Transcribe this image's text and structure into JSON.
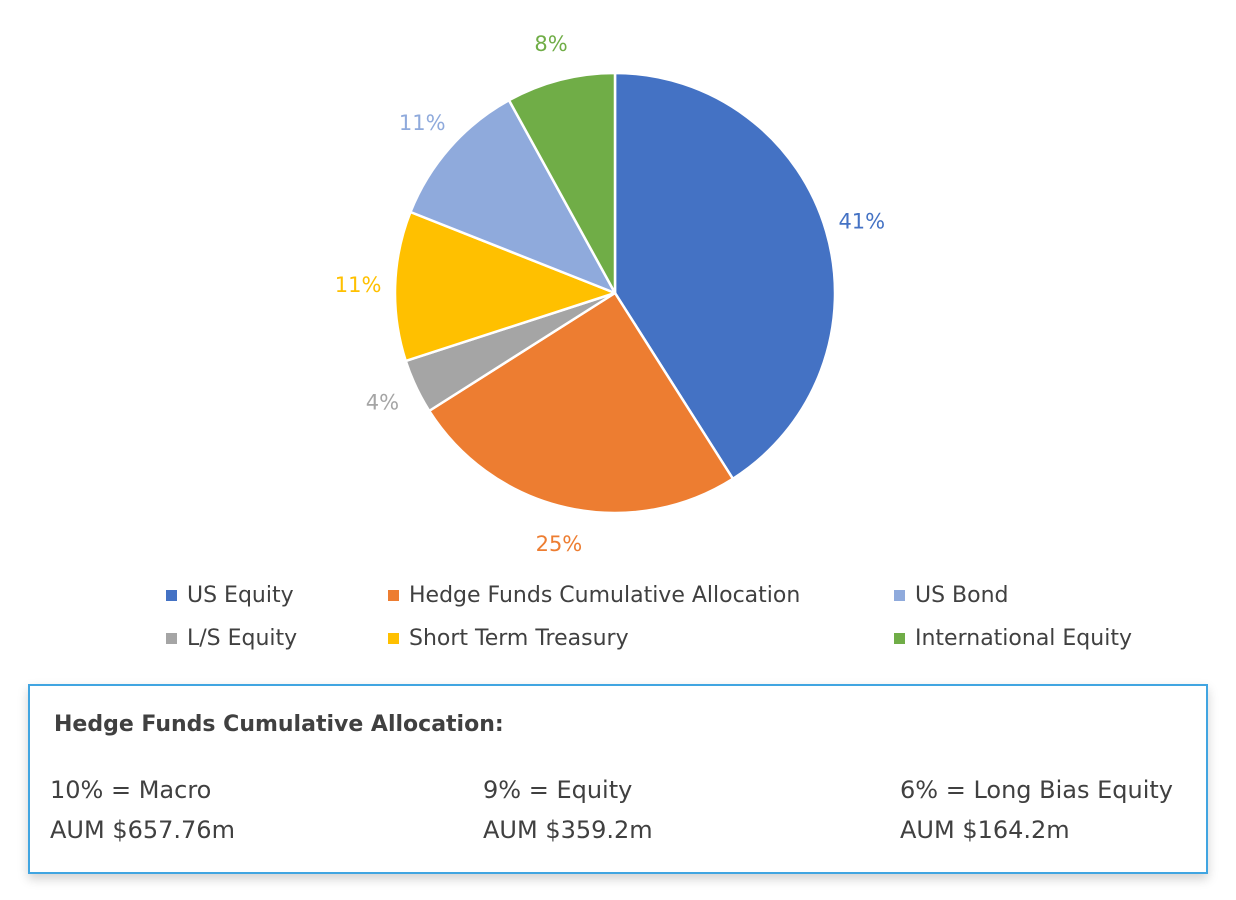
{
  "chart_data": {
    "type": "pie",
    "title": "",
    "slices": [
      {
        "label": "US Equity",
        "value": 41,
        "display": "41%",
        "color": "#4472c4",
        "label_color": "#4472c4"
      },
      {
        "label": "Hedge Funds Cumulative Allocation",
        "value": 25,
        "display": "25%",
        "color": "#ed7d31",
        "label_color": "#ed7d31"
      },
      {
        "label": "L/S Equity",
        "value": 4,
        "display": "4%",
        "color": "#a5a5a5",
        "label_color": "#a5a5a5"
      },
      {
        "label": "Short Term Treasury",
        "value": 11,
        "display": "11%",
        "color": "#ffc000",
        "label_color": "#ffc000"
      },
      {
        "label": "US Bond",
        "value": 11,
        "display": "11%",
        "color": "#8faadc",
        "label_color": "#8faadc"
      },
      {
        "label": "International Equity",
        "value": 8,
        "display": "8%",
        "color": "#70ad47",
        "label_color": "#70ad47"
      }
    ],
    "legend": {
      "placement": "bottom",
      "entries": [
        {
          "label": "US Equity",
          "color": "#4472c4"
        },
        {
          "label": "Hedge Funds Cumulative Allocation",
          "color": "#ed7d31"
        },
        {
          "label": "US Bond",
          "color": "#8faadc"
        },
        {
          "label": "L/S Equity",
          "color": "#a5a5a5"
        },
        {
          "label": "Short Term Treasury",
          "color": "#ffc000"
        },
        {
          "label": "International Equity",
          "color": "#70ad47"
        }
      ]
    }
  },
  "info_box": {
    "title": "Hedge Funds Cumulative Allocation:",
    "border_color": "#41a5e1",
    "columns": [
      {
        "allocation": "10% = Macro",
        "aum": "AUM $657.76m"
      },
      {
        "allocation": "9% = Equity",
        "aum": "AUM $359.2m"
      },
      {
        "allocation": "6% = Long Bias Equity",
        "aum": "AUM $164.2m"
      }
    ]
  }
}
